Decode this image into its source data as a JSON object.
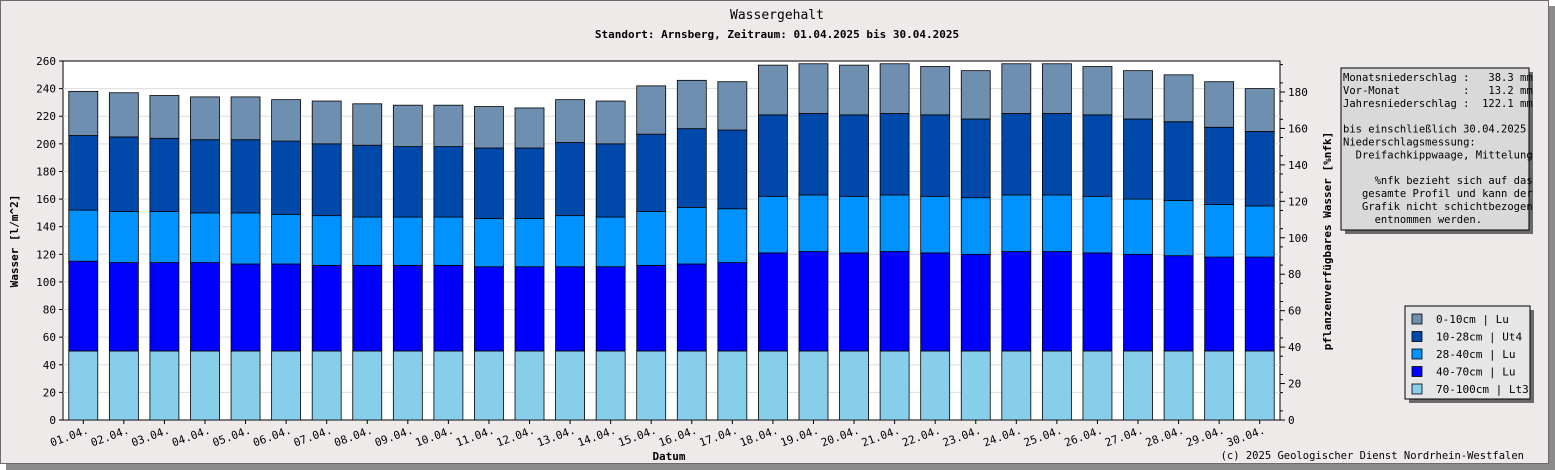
{
  "chart_data": {
    "type": "bar",
    "stacked": true,
    "title": "Wassergehalt",
    "subtitle": "Standort: Arnsberg, Zeitraum: 01.04.2025 bis 30.04.2025",
    "xlabel": "Datum",
    "ylabel": "Wasser [l/m^2]",
    "y2label": "pflanzenverfügbares Wasser [%nfk]",
    "ylim": [
      0,
      260
    ],
    "y2lim": [
      0,
      197
    ],
    "yticks": [
      0,
      20,
      40,
      60,
      80,
      100,
      120,
      140,
      160,
      180,
      200,
      220,
      240,
      260
    ],
    "y2ticks": [
      0,
      20,
      40,
      60,
      80,
      100,
      120,
      140,
      160,
      180
    ],
    "grid": true,
    "legend_position": "bottom-right",
    "categories": [
      "01.04.",
      "02.04.",
      "03.04.",
      "04.04.",
      "05.04.",
      "06.04.",
      "07.04.",
      "08.04.",
      "09.04.",
      "10.04.",
      "11.04.",
      "12.04.",
      "13.04.",
      "14.04.",
      "15.04.",
      "16.04.",
      "17.04.",
      "18.04.",
      "19.04.",
      "20.04.",
      "21.04.",
      "22.04.",
      "23.04.",
      "24.04.",
      "25.04.",
      "26.04.",
      "27.04.",
      "28.04.",
      "29.04.",
      "30.04."
    ],
    "series": [
      {
        "name": "70-100cm | Lt3",
        "color": "#87ceeb",
        "values": [
          50,
          50,
          50,
          50,
          50,
          50,
          50,
          50,
          50,
          50,
          50,
          50,
          50,
          50,
          50,
          50,
          50,
          50,
          50,
          50,
          50,
          50,
          50,
          50,
          50,
          50,
          50,
          50,
          50,
          50
        ]
      },
      {
        "name": "40-70cm | Lu",
        "color": "#0000ff",
        "values": [
          65,
          64,
          64,
          64,
          63,
          63,
          62,
          62,
          62,
          62,
          61,
          61,
          61,
          61,
          62,
          63,
          64,
          71,
          72,
          71,
          72,
          71,
          70,
          72,
          72,
          71,
          70,
          69,
          68,
          68
        ]
      },
      {
        "name": "28-40cm | Lu",
        "color": "#0093ff",
        "values": [
          37,
          37,
          37,
          36,
          37,
          36,
          36,
          35,
          35,
          35,
          35,
          35,
          37,
          36,
          39,
          41,
          39,
          41,
          41,
          41,
          41,
          41,
          41,
          41,
          41,
          41,
          40,
          40,
          38,
          37
        ]
      },
      {
        "name": "10-28cm | Ut4",
        "color": "#0049aa",
        "values": [
          54,
          54,
          53,
          53,
          53,
          53,
          52,
          52,
          51,
          51,
          51,
          51,
          53,
          53,
          56,
          57,
          57,
          59,
          59,
          59,
          59,
          59,
          57,
          59,
          59,
          59,
          58,
          57,
          56,
          54
        ]
      },
      {
        "name": "0-10cm | Lu",
        "color": "#6f8fb1",
        "values": [
          32,
          32,
          31,
          31,
          31,
          30,
          31,
          30,
          30,
          30,
          30,
          29,
          31,
          31,
          35,
          35,
          35,
          36,
          36,
          36,
          36,
          35,
          35,
          36,
          36,
          35,
          35,
          34,
          33,
          31
        ]
      }
    ]
  },
  "legend_order": [
    "0-10cm | Lu",
    "10-28cm | Ut4",
    "28-40cm | Lu",
    "40-70cm | Lu",
    "70-100cm | Lt3"
  ],
  "info_box": {
    "lines": [
      "Monatsniederschlag :   38.3 mm",
      "Vor-Monat          :   13.2 mm",
      "Jahresniederschlag :  122.1 mm",
      "",
      "bis einschließlich 30.04.2025",
      "Niederschlagsmessung:",
      "  Dreifachkippwaage, Mittelung",
      "",
      "     %nfk bezieht sich auf das",
      "   gesamte Profil und kann der",
      "   Grafik nicht schichtbezogen",
      "     entnommen werden."
    ]
  },
  "copyright": "(c) 2025 Geologischer Dienst Nordrhein-Westfalen"
}
